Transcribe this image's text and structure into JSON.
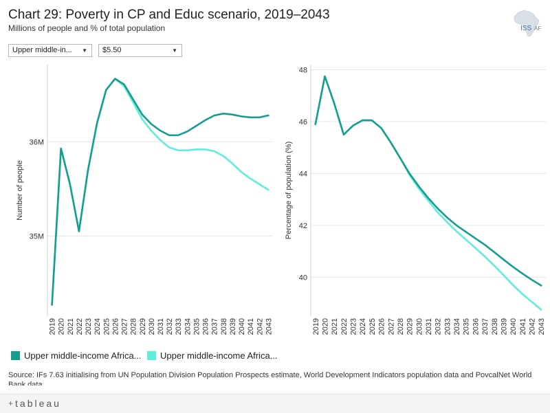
{
  "header": {
    "title": "Chart 29: Poverty in CP and Educ scenario, 2019–2043",
    "subtitle": "Millions of people and % of total population"
  },
  "logo": {
    "text_main": "ISS",
    "text_sub": "AF",
    "icon": "africa-map-icon"
  },
  "filters": {
    "group": "Upper middle-in...",
    "poverty_line": "$5.50",
    "caret_icon": "▼"
  },
  "colors": {
    "series1": "#159e8d",
    "series2": "#5eeed9"
  },
  "legend": {
    "items": [
      {
        "label": "Upper middle-income Africa..."
      },
      {
        "label": "Upper middle-income Africa..."
      }
    ]
  },
  "source": "Source: IFs 7.63 initialising from UN Population Division Population Prospects estimate, World Development Indicators population data and PovcalNet World Bank data",
  "footer": {
    "brand": "tableau",
    "plus": "+"
  },
  "chart_data": [
    {
      "type": "line",
      "ylabel": "Number of people",
      "ylim": [
        34.15,
        36.82
      ],
      "yticks": [
        35,
        36
      ],
      "ytick_labels": [
        "35M",
        "36M"
      ],
      "x": [
        "2019",
        "2020",
        "2021",
        "2022",
        "2023",
        "2024",
        "2025",
        "2026",
        "2027",
        "2028",
        "2029",
        "2030",
        "2031",
        "2032",
        "2033",
        "2034",
        "2035",
        "2036",
        "2037",
        "2038",
        "2039",
        "2040",
        "2041",
        "2042",
        "2043"
      ],
      "series": [
        {
          "name": "Upper middle-income Africa (CP)",
          "values": [
            34.27,
            35.93,
            35.55,
            35.05,
            35.7,
            36.2,
            36.55,
            36.67,
            36.61,
            36.45,
            36.29,
            36.19,
            36.12,
            36.07,
            36.07,
            36.11,
            36.17,
            36.23,
            36.28,
            36.3,
            36.29,
            36.27,
            36.26,
            36.26,
            36.28
          ]
        },
        {
          "name": "Upper middle-income Africa (Educ)",
          "values": [
            34.27,
            35.93,
            35.55,
            35.05,
            35.7,
            36.2,
            36.55,
            36.67,
            36.59,
            36.42,
            36.24,
            36.12,
            36.02,
            35.94,
            35.91,
            35.91,
            35.92,
            35.92,
            35.9,
            35.85,
            35.77,
            35.68,
            35.61,
            35.55,
            35.49
          ]
        }
      ]
    },
    {
      "type": "line",
      "ylabel": "Percentage of population (%)",
      "ylim": [
        38.5,
        48.2
      ],
      "yticks": [
        40,
        42,
        44,
        46,
        48
      ],
      "ytick_labels": [
        "40",
        "42",
        "44",
        "46",
        "48"
      ],
      "x": [
        "2019",
        "2020",
        "2021",
        "2022",
        "2023",
        "2024",
        "2025",
        "2026",
        "2027",
        "2028",
        "2029",
        "2030",
        "2031",
        "2032",
        "2033",
        "2034",
        "2035",
        "2036",
        "2037",
        "2038",
        "2039",
        "2040",
        "2041",
        "2042",
        "2043"
      ],
      "series": [
        {
          "name": "Upper middle-income Africa (CP)",
          "values": [
            45.9,
            47.75,
            46.7,
            45.5,
            45.85,
            46.05,
            46.05,
            45.75,
            45.2,
            44.6,
            44.0,
            43.5,
            43.05,
            42.65,
            42.3,
            42.0,
            41.75,
            41.5,
            41.25,
            40.97,
            40.68,
            40.4,
            40.14,
            39.9,
            39.68
          ]
        },
        {
          "name": "Upper middle-income Africa (Educ)",
          "values": [
            45.9,
            47.75,
            46.7,
            45.5,
            45.85,
            46.05,
            46.05,
            45.75,
            45.2,
            44.6,
            43.95,
            43.42,
            42.95,
            42.5,
            42.12,
            41.77,
            41.45,
            41.13,
            40.8,
            40.45,
            40.08,
            39.7,
            39.35,
            39.05,
            38.75
          ]
        }
      ]
    }
  ]
}
